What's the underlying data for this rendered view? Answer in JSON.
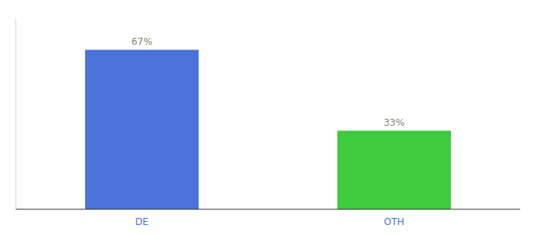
{
  "chart_data": {
    "type": "bar",
    "categories": [
      "DE",
      "OTH"
    ],
    "values": [
      67,
      33
    ],
    "value_labels": [
      "67%",
      "33%"
    ],
    "colors": [
      "#4a72d9",
      "#3dca3d"
    ],
    "ylim": [
      0,
      80
    ],
    "data_labels": true,
    "tick_labels": "x",
    "grid": false
  }
}
